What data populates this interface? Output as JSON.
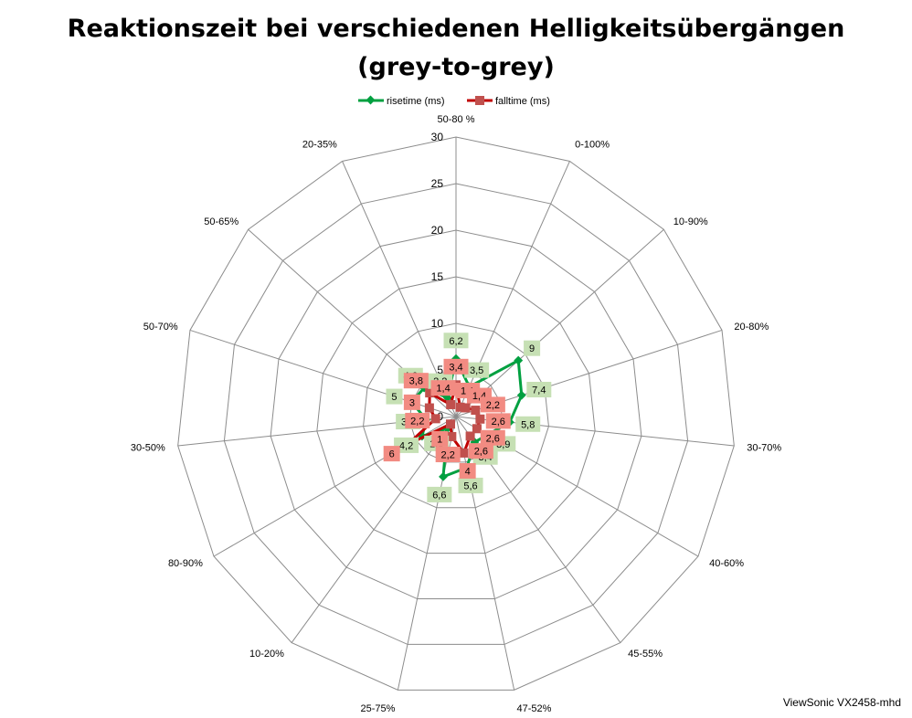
{
  "chart_data": {
    "type": "radar",
    "title_line1": "Reaktionszeit bei verschiedenen Helligkeitsübergängen",
    "title_line2": "(grey-to-grey)",
    "categories": [
      "50-80 %",
      "0-100%",
      "10-90%",
      "20-80%",
      "30-70%",
      "40-60%",
      "45-55%",
      "47-52%",
      "25-75%",
      "10-20%",
      "80-90%",
      "30-50%",
      "50-70%",
      "50-65%",
      "20-35%"
    ],
    "radial_axis": {
      "min": 0,
      "max": 30,
      "step": 5,
      "ticks": [
        "0",
        "5",
        "10",
        "15",
        "20",
        "25",
        "30"
      ]
    },
    "grid": true,
    "legend_position": "top",
    "series": [
      {
        "name": "risetime (ms)",
        "color": "#00a040",
        "label_bg": "#c6e0b4",
        "marker": "diamond",
        "values": [
          6.2,
          3.5,
          9,
          7.4,
          5.8,
          3.9,
          3.4,
          5.6,
          6.6,
          1.6,
          4.2,
          3.2,
          5,
          4.6,
          2.2
        ],
        "labels": [
          "6,2",
          "3,5",
          "9",
          "7,4",
          "5,8",
          "3,9",
          "3,4",
          "5,6",
          "6,6",
          "1,6",
          "4,2",
          "3,2",
          "5",
          "4,6",
          "2,2"
        ]
      },
      {
        "name": "falltime (ms)",
        "color": "#c00000",
        "label_bg": "#f28b82",
        "marker": "square",
        "values": [
          3.4,
          1.1,
          1.4,
          2.2,
          2.6,
          2.6,
          2.6,
          4,
          2.2,
          1,
          6,
          2.2,
          3,
          3.8,
          1.4
        ],
        "labels": [
          "3,4",
          "1,1",
          "1,4",
          "2,2",
          "2,6",
          "2,6",
          "2,6",
          "4",
          "2,2",
          "1",
          "6",
          "2,2",
          "3",
          "3,8",
          "1,4"
        ]
      }
    ]
  },
  "footer": {
    "credit": "ViewSonic VX2458-mhd"
  }
}
